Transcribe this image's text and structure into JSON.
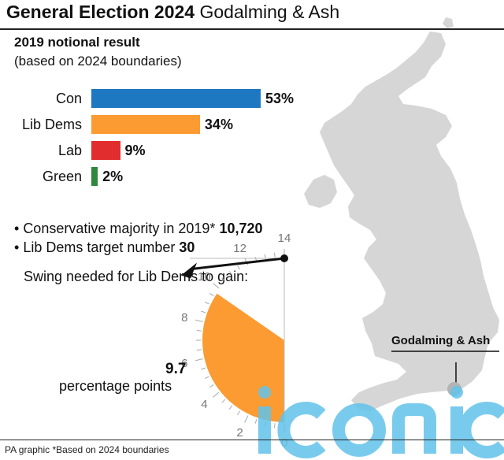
{
  "header": {
    "title_bold": "General Election 2024",
    "title_rest": " Godalming & Ash"
  },
  "subtitle": {
    "line1": "2019 notional result",
    "line2": "(based on 2024 boundaries)"
  },
  "chart_data": [
    {
      "type": "bar",
      "orientation": "horizontal",
      "categories": [
        "Con",
        "Lib Dems",
        "Lab",
        "Green"
      ],
      "values": [
        53,
        34,
        9,
        2
      ],
      "value_labels": [
        "53%",
        "34%",
        "9%",
        "2%"
      ],
      "colors": [
        "#1d78c1",
        "#fb9b32",
        "#e12d2d",
        "#2d8a3c"
      ],
      "title": "2019 notional result",
      "subtitle": "(based on 2024 boundaries)",
      "xlim": [
        0,
        53
      ],
      "grid": false
    },
    {
      "type": "gauge",
      "title": "Swing needed for Lib Dems to gain:",
      "value": 9.7,
      "value_label": "9.7",
      "unit_label": "percentage points",
      "range": [
        0,
        14
      ],
      "ticks": [
        "0",
        "2",
        "4",
        "6",
        "8",
        "10",
        "12",
        "14"
      ],
      "fill_color": "#fb9b32",
      "pointer_color": "#111111"
    }
  ],
  "facts": {
    "majority_text": "Conservative majority in 2019*",
    "majority_value": "10,720",
    "target_text": "Lib Dems target number",
    "target_value": "30"
  },
  "map": {
    "place_label": "Godalming & Ash",
    "marker_color": "#b3b3b3",
    "land_color": "#d6d6d6"
  },
  "footer": {
    "credit": "PA graphic *Based on 2024 boundaries"
  },
  "watermark": {
    "text": "iconic",
    "color": "#62c3ea"
  }
}
